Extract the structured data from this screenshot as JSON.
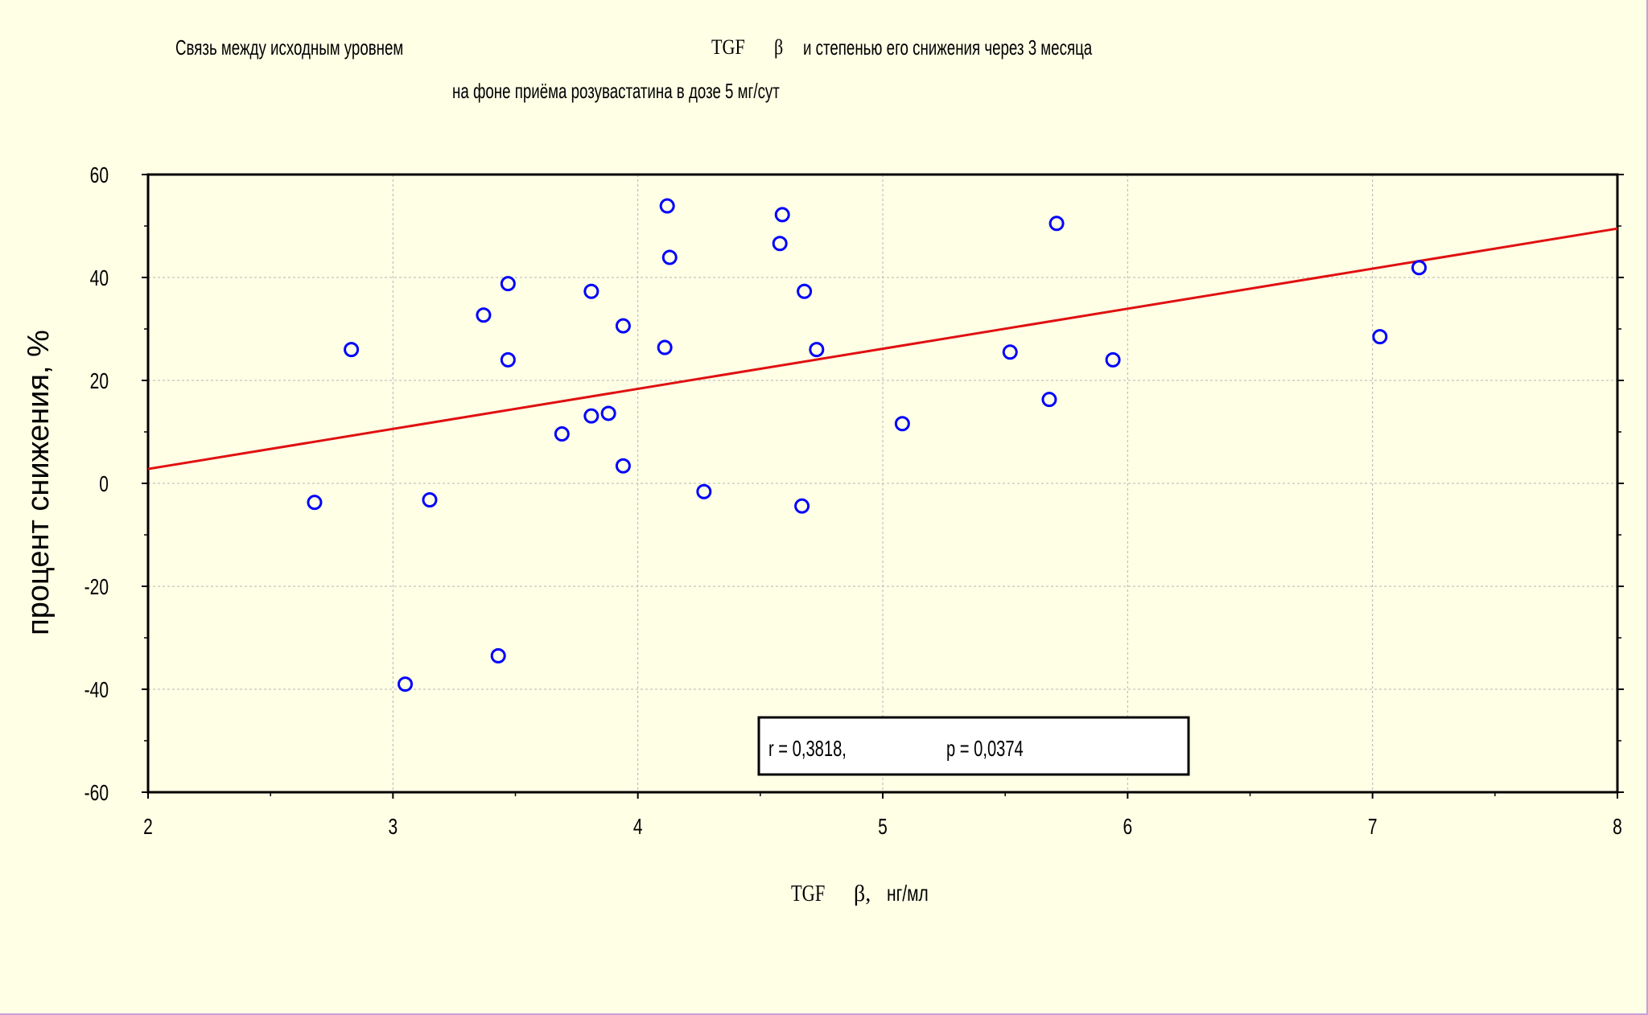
{
  "title": {
    "line1_part1": "Связь между исходным уровнем",
    "line1_part2": "TGF",
    "line1_part3": "β",
    "line1_part4": "и степенью его снижения через 3 месяца",
    "line2": "на фоне приёма розувастатина в дозе 5 мг/сут"
  },
  "colors": {
    "background": "#ffffe6",
    "points": "#0000ff",
    "regression_line": "#e01010",
    "grid": "#b4b4b4"
  },
  "stats_box": {
    "r_text": "r = 0,3818,",
    "p_text": "p = 0,0374"
  },
  "chart_data": {
    "type": "scatter",
    "title": "Связь между исходным уровнем TGF β и степенью его снижения через 3 месяца на фоне приёма розувастатина в дозе 5 мг/сут",
    "xlabel": "TGF β, нг/мл",
    "xlabel_parts": [
      "TGF",
      "β,",
      "нг/мл"
    ],
    "ylabel": "процент снижения, %",
    "xlim": [
      2,
      8
    ],
    "ylim": [
      -60,
      60
    ],
    "xticks": [
      2,
      3,
      4,
      5,
      6,
      7,
      8
    ],
    "yticks": [
      60,
      40,
      20,
      0,
      -20,
      -40,
      -60
    ],
    "grid": true,
    "regression_line": {
      "x": [
        2,
        8
      ],
      "y": [
        2.8,
        49.5
      ]
    },
    "series": [
      {
        "points": [
          {
            "x": 2.68,
            "y": -3.7
          },
          {
            "x": 2.83,
            "y": 26.0
          },
          {
            "x": 3.05,
            "y": -39.0
          },
          {
            "x": 3.15,
            "y": -3.2
          },
          {
            "x": 3.37,
            "y": 32.7
          },
          {
            "x": 3.43,
            "y": -33.5
          },
          {
            "x": 3.47,
            "y": 38.8
          },
          {
            "x": 3.47,
            "y": 24.0
          },
          {
            "x": 3.69,
            "y": 9.6
          },
          {
            "x": 3.81,
            "y": 37.3
          },
          {
            "x": 3.81,
            "y": 13.1
          },
          {
            "x": 3.88,
            "y": 13.6
          },
          {
            "x": 3.94,
            "y": 30.6
          },
          {
            "x": 3.94,
            "y": 3.4
          },
          {
            "x": 4.11,
            "y": 26.4
          },
          {
            "x": 4.12,
            "y": 53.9
          },
          {
            "x": 4.13,
            "y": 43.9
          },
          {
            "x": 4.27,
            "y": -1.6
          },
          {
            "x": 4.58,
            "y": 46.6
          },
          {
            "x": 4.59,
            "y": 52.2
          },
          {
            "x": 4.67,
            "y": -4.4
          },
          {
            "x": 4.68,
            "y": 37.3
          },
          {
            "x": 4.73,
            "y": 26.0
          },
          {
            "x": 5.08,
            "y": 11.6
          },
          {
            "x": 5.52,
            "y": 25.5
          },
          {
            "x": 5.68,
            "y": 16.3
          },
          {
            "x": 5.71,
            "y": 50.5
          },
          {
            "x": 5.94,
            "y": 24.0
          },
          {
            "x": 7.03,
            "y": 28.5
          },
          {
            "x": 7.19,
            "y": 41.9
          }
        ]
      }
    ]
  }
}
